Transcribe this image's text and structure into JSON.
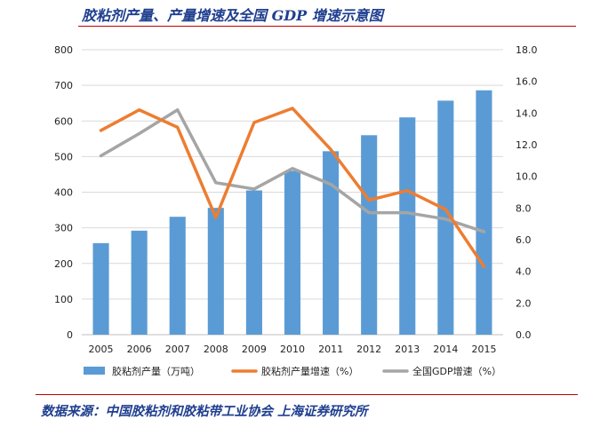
{
  "page": {
    "title": "胶粘剂产量、产量增速及全国 GDP 增速示意图",
    "source": "数据来源：中国胶粘剂和胶粘带工业协会 上海证券研究所"
  },
  "chart_data": {
    "type": "bar",
    "categories": [
      "2005",
      "2006",
      "2007",
      "2008",
      "2009",
      "2010",
      "2011",
      "2012",
      "2013",
      "2014",
      "2015"
    ],
    "ylim": [
      0,
      800
    ],
    "y2lim": [
      0,
      18
    ],
    "y_ticks": [
      "0",
      "100",
      "200",
      "300",
      "400",
      "500",
      "600",
      "700",
      "800"
    ],
    "y2_ticks": [
      "0.0",
      "2.0",
      "4.0",
      "6.0",
      "8.0",
      "10.0",
      "12.0",
      "14.0",
      "16.0",
      "18.0"
    ],
    "grid": true,
    "legend_position": "bottom",
    "series": [
      {
        "name": "胶粘剂产量（万吨）",
        "type": "bar",
        "axis": "left",
        "color": "#5b9bd5",
        "values": [
          257,
          292,
          331,
          356,
          405,
          460,
          515,
          560,
          610,
          657,
          686
        ]
      },
      {
        "name": "胶粘剂产量增速（%）",
        "type": "line",
        "axis": "right",
        "color": "#ed7d31",
        "values": [
          12.9,
          14.2,
          13.1,
          7.4,
          13.4,
          14.3,
          11.7,
          8.5,
          9.1,
          7.9,
          4.3
        ]
      },
      {
        "name": "全国GDP增速（%）",
        "type": "line",
        "axis": "right",
        "color": "#a5a5a5",
        "values": [
          11.3,
          12.7,
          14.2,
          9.6,
          9.2,
          10.5,
          9.5,
          7.7,
          7.7,
          7.3,
          6.5
        ]
      }
    ]
  }
}
